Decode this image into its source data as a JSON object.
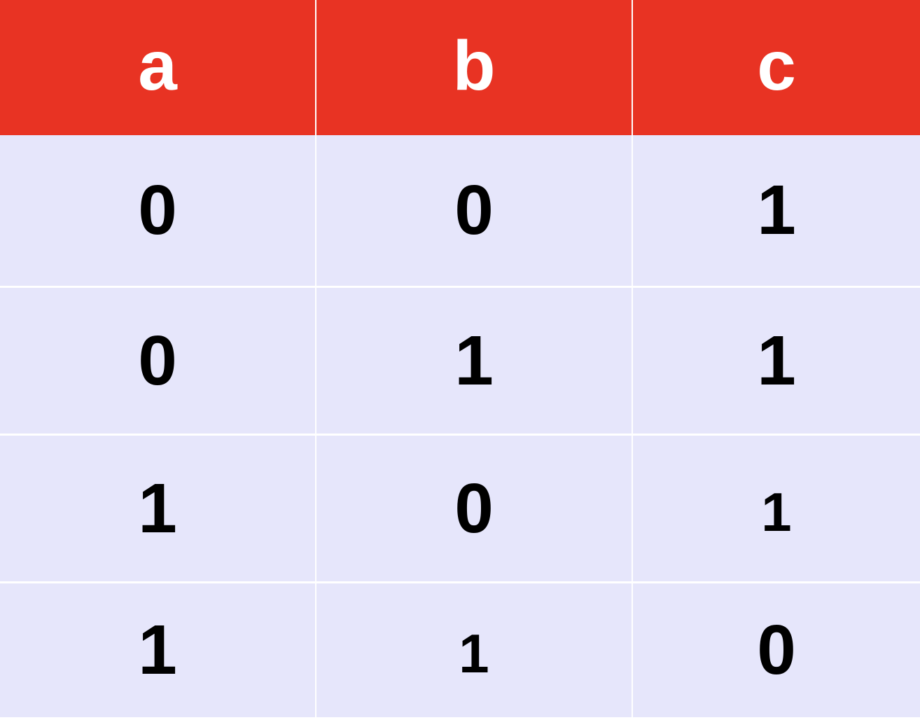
{
  "table": {
    "headers": [
      "a",
      "b",
      "c"
    ],
    "rows": [
      [
        "0",
        "0",
        "1"
      ],
      [
        "0",
        "1",
        "1"
      ],
      [
        "1",
        "0",
        "1"
      ],
      [
        "1",
        "1",
        "0"
      ]
    ]
  },
  "colors": {
    "header_background": "#e83323",
    "header_text": "#ffffff",
    "body_background": "#e6e6fb",
    "body_text": "#000000",
    "grid_lines": "#ffffff"
  }
}
